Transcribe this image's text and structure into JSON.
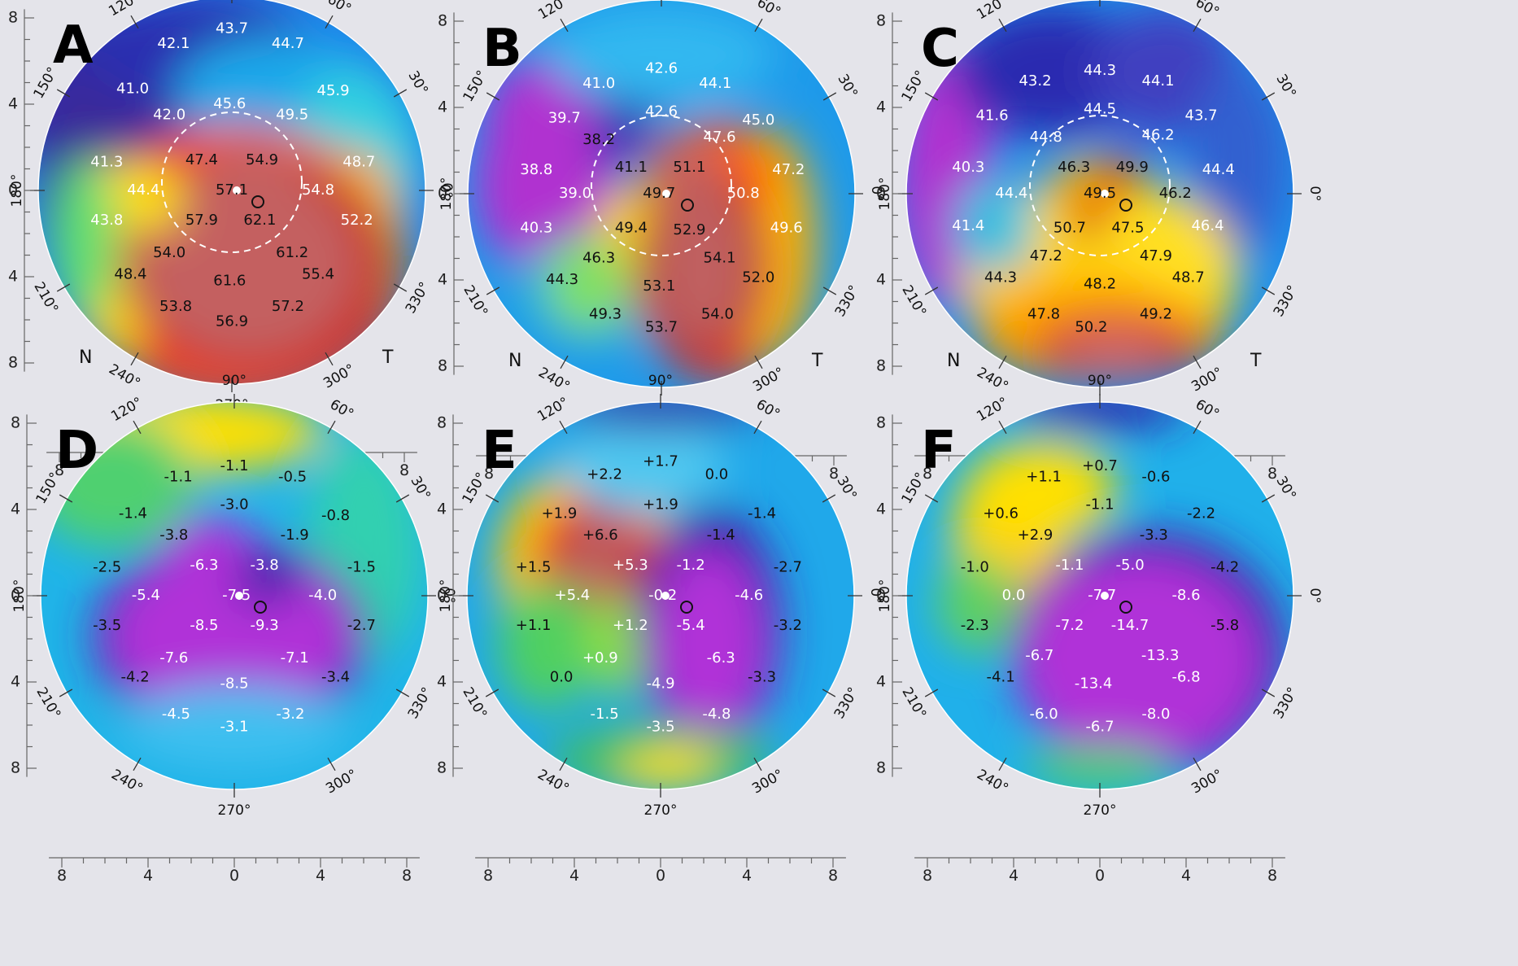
{
  "colors": {
    "background": "#e4e4ea",
    "axis": "#666666",
    "label_on_light": "#111111",
    "label_on_dark": "#ffffff"
  },
  "axis_ticks": [
    "8",
    "4",
    "0",
    "4",
    "8"
  ],
  "angle_labels": [
    "90°",
    "60°",
    "30°",
    "0°",
    "330°",
    "300°",
    "270°",
    "240°",
    "210°",
    "180°",
    "150°",
    "120°"
  ],
  "side_labels": {
    "nasal": "N",
    "temporal": "T"
  },
  "panels": [
    {
      "letter": "A",
      "type": "keratometry",
      "has_circle": true,
      "has_sides": true,
      "values": [
        {
          "text": "43.7",
          "x": 0.0,
          "y": 7.5
        },
        {
          "text": "42.1",
          "x": -2.7,
          "y": 6.8
        },
        {
          "text": "44.7",
          "x": 2.6,
          "y": 6.8
        },
        {
          "text": "41.0",
          "x": -4.6,
          "y": 4.7
        },
        {
          "text": "42.0",
          "x": -2.9,
          "y": 3.5
        },
        {
          "text": "45.6",
          "x": -0.1,
          "y": 4.0
        },
        {
          "text": "49.5",
          "x": 2.8,
          "y": 3.5
        },
        {
          "text": "45.9",
          "x": 4.7,
          "y": 4.6
        },
        {
          "text": "41.3",
          "x": -5.8,
          "y": 1.3
        },
        {
          "text": "47.4",
          "x": -1.4,
          "y": 1.4
        },
        {
          "text": "54.9",
          "x": 1.4,
          "y": 1.4
        },
        {
          "text": "48.7",
          "x": 5.9,
          "y": 1.3
        },
        {
          "text": "44.4",
          "x": -4.1,
          "y": 0.0
        },
        {
          "text": "57.1",
          "x": 0.0,
          "y": 0.0
        },
        {
          "text": "54.8",
          "x": 4.0,
          "y": 0.0
        },
        {
          "text": "43.8",
          "x": -5.8,
          "y": -1.4
        },
        {
          "text": "57.9",
          "x": -1.4,
          "y": -1.4
        },
        {
          "text": "62.1",
          "x": 1.3,
          "y": -1.4
        },
        {
          "text": "52.2",
          "x": 5.8,
          "y": -1.4
        },
        {
          "text": "54.0",
          "x": -2.9,
          "y": -2.9
        },
        {
          "text": "61.2",
          "x": 2.8,
          "y": -2.9
        },
        {
          "text": "48.4",
          "x": -4.7,
          "y": -3.9
        },
        {
          "text": "61.6",
          "x": -0.1,
          "y": -4.2
        },
        {
          "text": "55.4",
          "x": 4.0,
          "y": -3.9
        },
        {
          "text": "53.8",
          "x": -2.6,
          "y": -5.4
        },
        {
          "text": "57.2",
          "x": 2.6,
          "y": -5.4
        },
        {
          "text": "56.9",
          "x": 0.0,
          "y": -6.1
        }
      ]
    },
    {
      "letter": "B",
      "type": "keratometry",
      "has_circle": true,
      "has_sides": true,
      "values": [
        {
          "text": "42.6",
          "x": 0.0,
          "y": 5.8
        },
        {
          "text": "41.0",
          "x": -2.9,
          "y": 5.1
        },
        {
          "text": "44.1",
          "x": 2.5,
          "y": 5.1
        },
        {
          "text": "39.7",
          "x": -4.5,
          "y": 3.5
        },
        {
          "text": "42.6",
          "x": 0.0,
          "y": 3.8
        },
        {
          "text": "45.0",
          "x": 4.5,
          "y": 3.4
        },
        {
          "text": "38.2",
          "x": -2.9,
          "y": 2.5
        },
        {
          "text": "47.6",
          "x": 2.7,
          "y": 2.6
        },
        {
          "text": "38.8",
          "x": -5.8,
          "y": 1.1
        },
        {
          "text": "41.1",
          "x": -1.4,
          "y": 1.2
        },
        {
          "text": "51.1",
          "x": 1.3,
          "y": 1.2
        },
        {
          "text": "47.2",
          "x": 5.9,
          "y": 1.1
        },
        {
          "text": "39.0",
          "x": -4.0,
          "y": 0.0
        },
        {
          "text": "49.7",
          "x": -0.1,
          "y": 0.0
        },
        {
          "text": "50.8",
          "x": 3.8,
          "y": 0.0
        },
        {
          "text": "40.3",
          "x": -5.8,
          "y": -1.6
        },
        {
          "text": "49.4",
          "x": -1.4,
          "y": -1.6
        },
        {
          "text": "52.9",
          "x": 1.3,
          "y": -1.7
        },
        {
          "text": "49.6",
          "x": 5.8,
          "y": -1.6
        },
        {
          "text": "46.3",
          "x": -2.9,
          "y": -3.0
        },
        {
          "text": "54.1",
          "x": 2.7,
          "y": -3.0
        },
        {
          "text": "44.3",
          "x": -4.6,
          "y": -4.0
        },
        {
          "text": "53.1",
          "x": -0.1,
          "y": -4.3
        },
        {
          "text": "52.0",
          "x": 4.5,
          "y": -3.9
        },
        {
          "text": "49.3",
          "x": -2.6,
          "y": -5.6
        },
        {
          "text": "54.0",
          "x": 2.6,
          "y": -5.6
        },
        {
          "text": "53.7",
          "x": 0.0,
          "y": -6.2
        }
      ]
    },
    {
      "letter": "C",
      "type": "keratometry",
      "has_circle": true,
      "has_sides": true,
      "values": [
        {
          "text": "44.3",
          "x": 0.0,
          "y": 5.7
        },
        {
          "text": "43.2",
          "x": -3.0,
          "y": 5.2
        },
        {
          "text": "44.1",
          "x": 2.7,
          "y": 5.2
        },
        {
          "text": "41.6",
          "x": -5.0,
          "y": 3.6
        },
        {
          "text": "44.5",
          "x": 0.0,
          "y": 3.9
        },
        {
          "text": "43.7",
          "x": 4.7,
          "y": 3.6
        },
        {
          "text": "44.8",
          "x": -2.5,
          "y": 2.6
        },
        {
          "text": "46.2",
          "x": 2.7,
          "y": 2.7
        },
        {
          "text": "40.3",
          "x": -6.1,
          "y": 1.2
        },
        {
          "text": "46.3",
          "x": -1.2,
          "y": 1.2
        },
        {
          "text": "49.9",
          "x": 1.5,
          "y": 1.2
        },
        {
          "text": "44.4",
          "x": 5.5,
          "y": 1.1
        },
        {
          "text": "44.4",
          "x": -4.1,
          "y": 0.0
        },
        {
          "text": "49.5",
          "x": 0.0,
          "y": 0.0
        },
        {
          "text": "46.2",
          "x": 3.5,
          "y": 0.0
        },
        {
          "text": "41.4",
          "x": -6.1,
          "y": -1.5
        },
        {
          "text": "50.7",
          "x": -1.4,
          "y": -1.6
        },
        {
          "text": "47.5",
          "x": 1.3,
          "y": -1.6
        },
        {
          "text": "46.4",
          "x": 5.0,
          "y": -1.5
        },
        {
          "text": "47.2",
          "x": -2.5,
          "y": -2.9
        },
        {
          "text": "47.9",
          "x": 2.6,
          "y": -2.9
        },
        {
          "text": "44.3",
          "x": -4.6,
          "y": -3.9
        },
        {
          "text": "48.2",
          "x": 0.0,
          "y": -4.2
        },
        {
          "text": "48.7",
          "x": 4.1,
          "y": -3.9
        },
        {
          "text": "47.8",
          "x": -2.6,
          "y": -5.6
        },
        {
          "text": "49.2",
          "x": 2.6,
          "y": -5.6
        },
        {
          "text": "50.2",
          "x": -0.4,
          "y": -6.2
        }
      ]
    },
    {
      "letter": "D",
      "type": "difference",
      "has_circle": false,
      "has_sides": false,
      "values": [
        {
          "text": "-1.1",
          "x": 0.0,
          "y": 6.0
        },
        {
          "text": "-1.1",
          "x": -2.6,
          "y": 5.5
        },
        {
          "text": "-0.5",
          "x": 2.7,
          "y": 5.5
        },
        {
          "text": "-1.4",
          "x": -4.7,
          "y": 3.8
        },
        {
          "text": "-3.0",
          "x": 0.0,
          "y": 4.2
        },
        {
          "text": "-0.8",
          "x": 4.7,
          "y": 3.7
        },
        {
          "text": "-3.8",
          "x": -2.8,
          "y": 2.8
        },
        {
          "text": "-1.9",
          "x": 2.8,
          "y": 2.8
        },
        {
          "text": "-2.5",
          "x": -5.9,
          "y": 1.3
        },
        {
          "text": "-6.3",
          "x": -1.4,
          "y": 1.4
        },
        {
          "text": "-3.8",
          "x": 1.4,
          "y": 1.4
        },
        {
          "text": "-1.5",
          "x": 5.9,
          "y": 1.3
        },
        {
          "text": "-5.4",
          "x": -4.1,
          "y": 0.0
        },
        {
          "text": "-7.5",
          "x": 0.1,
          "y": 0.0
        },
        {
          "text": "-4.0",
          "x": 4.1,
          "y": 0.0
        },
        {
          "text": "-3.5",
          "x": -5.9,
          "y": -1.4
        },
        {
          "text": "-8.5",
          "x": -1.4,
          "y": -1.4
        },
        {
          "text": "-9.3",
          "x": 1.4,
          "y": -1.4
        },
        {
          "text": "-2.7",
          "x": 5.9,
          "y": -1.4
        },
        {
          "text": "-7.6",
          "x": -2.8,
          "y": -2.9
        },
        {
          "text": "-7.1",
          "x": 2.8,
          "y": -2.9
        },
        {
          "text": "-4.2",
          "x": -4.6,
          "y": -3.8
        },
        {
          "text": "-8.5",
          "x": 0.0,
          "y": -4.1
        },
        {
          "text": "-3.4",
          "x": 4.7,
          "y": -3.8
        },
        {
          "text": "-4.5",
          "x": -2.7,
          "y": -5.5
        },
        {
          "text": "-3.2",
          "x": 2.6,
          "y": -5.5
        },
        {
          "text": "-3.1",
          "x": 0.0,
          "y": -6.1
        }
      ]
    },
    {
      "letter": "E",
      "type": "difference",
      "has_circle": false,
      "has_sides": false,
      "values": [
        {
          "text": "+1.7",
          "x": 0.0,
          "y": 6.2
        },
        {
          "text": "+2.2",
          "x": -2.6,
          "y": 5.6
        },
        {
          "text": "0.0",
          "x": 2.6,
          "y": 5.6
        },
        {
          "text": "+1.9",
          "x": -4.7,
          "y": 3.8
        },
        {
          "text": "+1.9",
          "x": 0.0,
          "y": 4.2
        },
        {
          "text": "-1.4",
          "x": 4.7,
          "y": 3.8
        },
        {
          "text": "+6.6",
          "x": -2.8,
          "y": 2.8
        },
        {
          "text": "-1.4",
          "x": 2.8,
          "y": 2.8
        },
        {
          "text": "+1.5",
          "x": -5.9,
          "y": 1.3
        },
        {
          "text": "+5.3",
          "x": -1.4,
          "y": 1.4
        },
        {
          "text": "-1.2",
          "x": 1.4,
          "y": 1.4
        },
        {
          "text": "-2.7",
          "x": 5.9,
          "y": 1.3
        },
        {
          "text": "+5.4",
          "x": -4.1,
          "y": 0.0
        },
        {
          "text": "-0.2",
          "x": 0.1,
          "y": 0.0
        },
        {
          "text": "-4.6",
          "x": 4.1,
          "y": 0.0
        },
        {
          "text": "+1.1",
          "x": -5.9,
          "y": -1.4
        },
        {
          "text": "+1.2",
          "x": -1.4,
          "y": -1.4
        },
        {
          "text": "-5.4",
          "x": 1.4,
          "y": -1.4
        },
        {
          "text": "-3.2",
          "x": 5.9,
          "y": -1.4
        },
        {
          "text": "+0.9",
          "x": -2.8,
          "y": -2.9
        },
        {
          "text": "-6.3",
          "x": 2.8,
          "y": -2.9
        },
        {
          "text": "0.0",
          "x": -4.6,
          "y": -3.8
        },
        {
          "text": "-4.9",
          "x": 0.0,
          "y": -4.1
        },
        {
          "text": "-3.3",
          "x": 4.7,
          "y": -3.8
        },
        {
          "text": "-1.5",
          "x": -2.6,
          "y": -5.5
        },
        {
          "text": "-4.8",
          "x": 2.6,
          "y": -5.5
        },
        {
          "text": "-3.5",
          "x": 0.0,
          "y": -6.1
        }
      ]
    },
    {
      "letter": "F",
      "type": "difference",
      "has_circle": false,
      "has_sides": false,
      "values": [
        {
          "text": "+0.7",
          "x": 0.0,
          "y": 6.0
        },
        {
          "text": "+1.1",
          "x": -2.6,
          "y": 5.5
        },
        {
          "text": "-0.6",
          "x": 2.6,
          "y": 5.5
        },
        {
          "text": "+0.6",
          "x": -4.6,
          "y": 3.8
        },
        {
          "text": "-1.1",
          "x": 0.0,
          "y": 4.2
        },
        {
          "text": "-2.2",
          "x": 4.7,
          "y": 3.8
        },
        {
          "text": "+2.9",
          "x": -3.0,
          "y": 2.8
        },
        {
          "text": "-3.3",
          "x": 2.5,
          "y": 2.8
        },
        {
          "text": "-1.0",
          "x": -5.8,
          "y": 1.3
        },
        {
          "text": "-1.1",
          "x": -1.4,
          "y": 1.4
        },
        {
          "text": "-5.0",
          "x": 1.4,
          "y": 1.4
        },
        {
          "text": "-4.2",
          "x": 5.8,
          "y": 1.3
        },
        {
          "text": "0.0",
          "x": -4.0,
          "y": 0.0
        },
        {
          "text": "-7.7",
          "x": 0.1,
          "y": 0.0
        },
        {
          "text": "-8.6",
          "x": 4.0,
          "y": 0.0
        },
        {
          "text": "-2.3",
          "x": -5.8,
          "y": -1.4
        },
        {
          "text": "-7.2",
          "x": -1.4,
          "y": -1.4
        },
        {
          "text": "-14.7",
          "x": 1.4,
          "y": -1.4
        },
        {
          "text": "-5.8",
          "x": 5.8,
          "y": -1.4
        },
        {
          "text": "-6.7",
          "x": -2.8,
          "y": -2.8
        },
        {
          "text": "-13.3",
          "x": 2.8,
          "y": -2.8
        },
        {
          "text": "-4.1",
          "x": -4.6,
          "y": -3.8
        },
        {
          "text": "-13.4",
          "x": -0.3,
          "y": -4.1
        },
        {
          "text": "-6.8",
          "x": 4.0,
          "y": -3.8
        },
        {
          "text": "-6.0",
          "x": -2.6,
          "y": -5.5
        },
        {
          "text": "-8.0",
          "x": 2.6,
          "y": -5.5
        },
        {
          "text": "-6.7",
          "x": 0.0,
          "y": -6.1
        }
      ]
    }
  ]
}
